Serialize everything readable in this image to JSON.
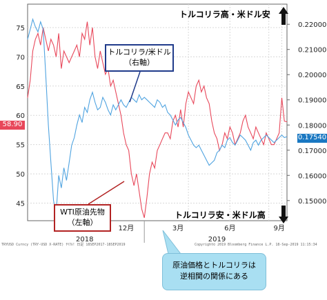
{
  "labels": {
    "top_right": "トルコリラ高・米ドル安",
    "bottom_right": "トルコリラ安・米ドル高",
    "callout_try": [
      "トルコリラ/米ドル",
      "（右軸）"
    ],
    "callout_wti": [
      "WTI原油先物",
      "（左軸）"
    ],
    "callout_note": [
      "原油価格とトルコリラは",
      "逆相関の関係にある"
    ],
    "badge_left": "58.90",
    "badge_right": "0.17540",
    "footer_left": "TRYUSD Curncy (TRY-USD X-RATE)  ｻｲｸﾙ!  日足 18SEP2017-18SEP2019",
    "footer_right": "Copyright© 2019 Bloomberg Finance L.P.    18-Sep-2019 11:15:34"
  },
  "colors": {
    "wti": "#e8475a",
    "try": "#4fa3e0",
    "arrow": "#111111"
  },
  "chart_data": {
    "type": "line",
    "x_ticks": [
      "12月",
      "3月",
      "6月",
      "9月"
    ],
    "year_labels": [
      "2018",
      "2019"
    ],
    "y_left": {
      "range": [
        42,
        79
      ],
      "ticks": [
        45,
        50,
        55,
        60,
        65,
        70,
        75
      ]
    },
    "y_right": {
      "range": [
        0.142,
        0.228
      ],
      "ticks": [
        "0.15000",
        "0.16000",
        "0.17000",
        "0.18000",
        "0.19000",
        "0.20000",
        "0.21000",
        "0.22000"
      ]
    },
    "x_range": [
      0,
      100
    ],
    "grid": true,
    "series": [
      {
        "axis": "left",
        "points": [
          [
            0,
            63
          ],
          [
            1,
            66
          ],
          [
            2,
            71
          ],
          [
            3,
            73
          ],
          [
            4,
            74
          ],
          [
            5,
            72
          ],
          [
            6,
            75
          ],
          [
            7,
            73
          ],
          [
            8,
            71
          ],
          [
            9,
            73
          ],
          [
            10,
            72
          ],
          [
            11,
            70
          ],
          [
            12,
            74
          ],
          [
            13,
            68
          ],
          [
            14,
            71
          ],
          [
            15,
            70
          ],
          [
            16,
            69
          ],
          [
            17,
            70
          ],
          [
            18,
            71
          ],
          [
            19,
            72
          ],
          [
            20,
            70
          ],
          [
            21,
            74
          ],
          [
            22,
            73
          ],
          [
            23,
            76
          ],
          [
            24,
            72
          ],
          [
            25,
            75
          ],
          [
            26,
            70
          ],
          [
            27,
            68
          ],
          [
            28,
            71
          ],
          [
            29,
            69
          ],
          [
            30,
            67
          ],
          [
            31,
            68
          ],
          [
            32,
            65
          ],
          [
            33,
            66
          ],
          [
            34,
            64
          ],
          [
            35,
            62
          ],
          [
            36,
            60
          ],
          [
            37,
            57
          ],
          [
            38,
            55
          ],
          [
            39,
            54
          ],
          [
            40,
            50
          ],
          [
            41,
            48
          ],
          [
            42,
            50
          ],
          [
            43,
            47
          ],
          [
            44,
            44
          ],
          [
            45,
            42.5
          ],
          [
            46,
            46
          ],
          [
            47,
            50
          ],
          [
            48,
            52
          ],
          [
            49,
            51
          ],
          [
            50,
            54
          ],
          [
            51,
            55
          ],
          [
            52,
            56
          ],
          [
            53,
            57
          ],
          [
            54,
            57
          ],
          [
            55,
            56
          ],
          [
            56,
            59
          ],
          [
            57,
            60
          ],
          [
            58,
            58
          ],
          [
            59,
            61
          ],
          [
            60,
            58
          ],
          [
            61,
            62
          ],
          [
            62,
            64
          ],
          [
            63,
            63
          ],
          [
            64,
            62
          ],
          [
            65,
            65
          ],
          [
            66,
            66
          ],
          [
            67,
            64
          ],
          [
            68,
            65
          ],
          [
            69,
            63
          ],
          [
            70,
            62
          ],
          [
            71,
            59
          ],
          [
            72,
            57
          ],
          [
            73,
            56
          ],
          [
            74,
            54
          ],
          [
            75,
            55
          ],
          [
            76,
            57
          ],
          [
            77,
            56
          ],
          [
            78,
            58
          ],
          [
            79,
            57
          ],
          [
            80,
            55
          ],
          [
            81,
            56
          ],
          [
            82,
            57
          ],
          [
            83,
            59
          ],
          [
            84,
            60
          ],
          [
            85,
            58
          ],
          [
            86,
            57
          ],
          [
            87,
            56
          ],
          [
            88,
            58
          ],
          [
            89,
            57
          ],
          [
            90,
            56
          ],
          [
            91,
            55
          ],
          [
            92,
            57
          ],
          [
            93,
            56
          ],
          [
            94,
            55
          ],
          [
            95,
            55
          ],
          [
            96,
            56
          ],
          [
            97,
            57
          ],
          [
            98,
            63
          ],
          [
            99,
            59
          ],
          [
            100,
            58.9
          ]
        ]
      },
      {
        "axis": "right",
        "points": [
          [
            0,
            0.214
          ],
          [
            1,
            0.218
          ],
          [
            2,
            0.222
          ],
          [
            3,
            0.219
          ],
          [
            4,
            0.217
          ],
          [
            5,
            0.221
          ],
          [
            6,
            0.218
          ],
          [
            7,
            0.2
          ],
          [
            8,
            0.18
          ],
          [
            9,
            0.165
          ],
          [
            10,
            0.15
          ],
          [
            11,
            0.145
          ],
          [
            12,
            0.16
          ],
          [
            13,
            0.155
          ],
          [
            14,
            0.163
          ],
          [
            15,
            0.158
          ],
          [
            16,
            0.165
          ],
          [
            17,
            0.172
          ],
          [
            18,
            0.175
          ],
          [
            19,
            0.18
          ],
          [
            20,
            0.184
          ],
          [
            21,
            0.181
          ],
          [
            22,
            0.187
          ],
          [
            23,
            0.185
          ],
          [
            24,
            0.19
          ],
          [
            25,
            0.193
          ],
          [
            26,
            0.189
          ],
          [
            27,
            0.186
          ],
          [
            28,
            0.187
          ],
          [
            29,
            0.191
          ],
          [
            30,
            0.189
          ],
          [
            31,
            0.186
          ],
          [
            32,
            0.184
          ],
          [
            33,
            0.188
          ],
          [
            34,
            0.186
          ],
          [
            35,
            0.188
          ],
          [
            36,
            0.19
          ],
          [
            37,
            0.188
          ],
          [
            38,
            0.187
          ],
          [
            39,
            0.189
          ],
          [
            40,
            0.191
          ],
          [
            41,
            0.19
          ],
          [
            42,
            0.189
          ],
          [
            43,
            0.192
          ],
          [
            44,
            0.19
          ],
          [
            45,
            0.191
          ],
          [
            46,
            0.19
          ],
          [
            47,
            0.189
          ],
          [
            48,
            0.188
          ],
          [
            49,
            0.187
          ],
          [
            50,
            0.19
          ],
          [
            51,
            0.189
          ],
          [
            52,
            0.187
          ],
          [
            53,
            0.188
          ],
          [
            54,
            0.185
          ],
          [
            55,
            0.184
          ],
          [
            56,
            0.182
          ],
          [
            57,
            0.18
          ],
          [
            58,
            0.182
          ],
          [
            59,
            0.183
          ],
          [
            60,
            0.181
          ],
          [
            61,
            0.179
          ],
          [
            62,
            0.176
          ],
          [
            63,
            0.174
          ],
          [
            64,
            0.172
          ],
          [
            65,
            0.171
          ],
          [
            66,
            0.172
          ],
          [
            67,
            0.17
          ],
          [
            68,
            0.168
          ],
          [
            69,
            0.166
          ],
          [
            70,
            0.164
          ],
          [
            71,
            0.165
          ],
          [
            72,
            0.166
          ],
          [
            73,
            0.169
          ],
          [
            74,
            0.17
          ],
          [
            75,
            0.172
          ],
          [
            76,
            0.171
          ],
          [
            77,
            0.174
          ],
          [
            78,
            0.175
          ],
          [
            79,
            0.173
          ],
          [
            80,
            0.172
          ],
          [
            81,
            0.174
          ],
          [
            82,
            0.176
          ],
          [
            83,
            0.175
          ],
          [
            84,
            0.174
          ],
          [
            85,
            0.172
          ],
          [
            86,
            0.17
          ],
          [
            87,
            0.173
          ],
          [
            88,
            0.174
          ],
          [
            89,
            0.172
          ],
          [
            90,
            0.174
          ],
          [
            91,
            0.175
          ],
          [
            92,
            0.176
          ],
          [
            93,
            0.175
          ],
          [
            94,
            0.174
          ],
          [
            95,
            0.173
          ],
          [
            96,
            0.174
          ],
          [
            97,
            0.175
          ],
          [
            98,
            0.176
          ],
          [
            99,
            0.175
          ],
          [
            100,
            0.1754
          ]
        ]
      }
    ]
  }
}
